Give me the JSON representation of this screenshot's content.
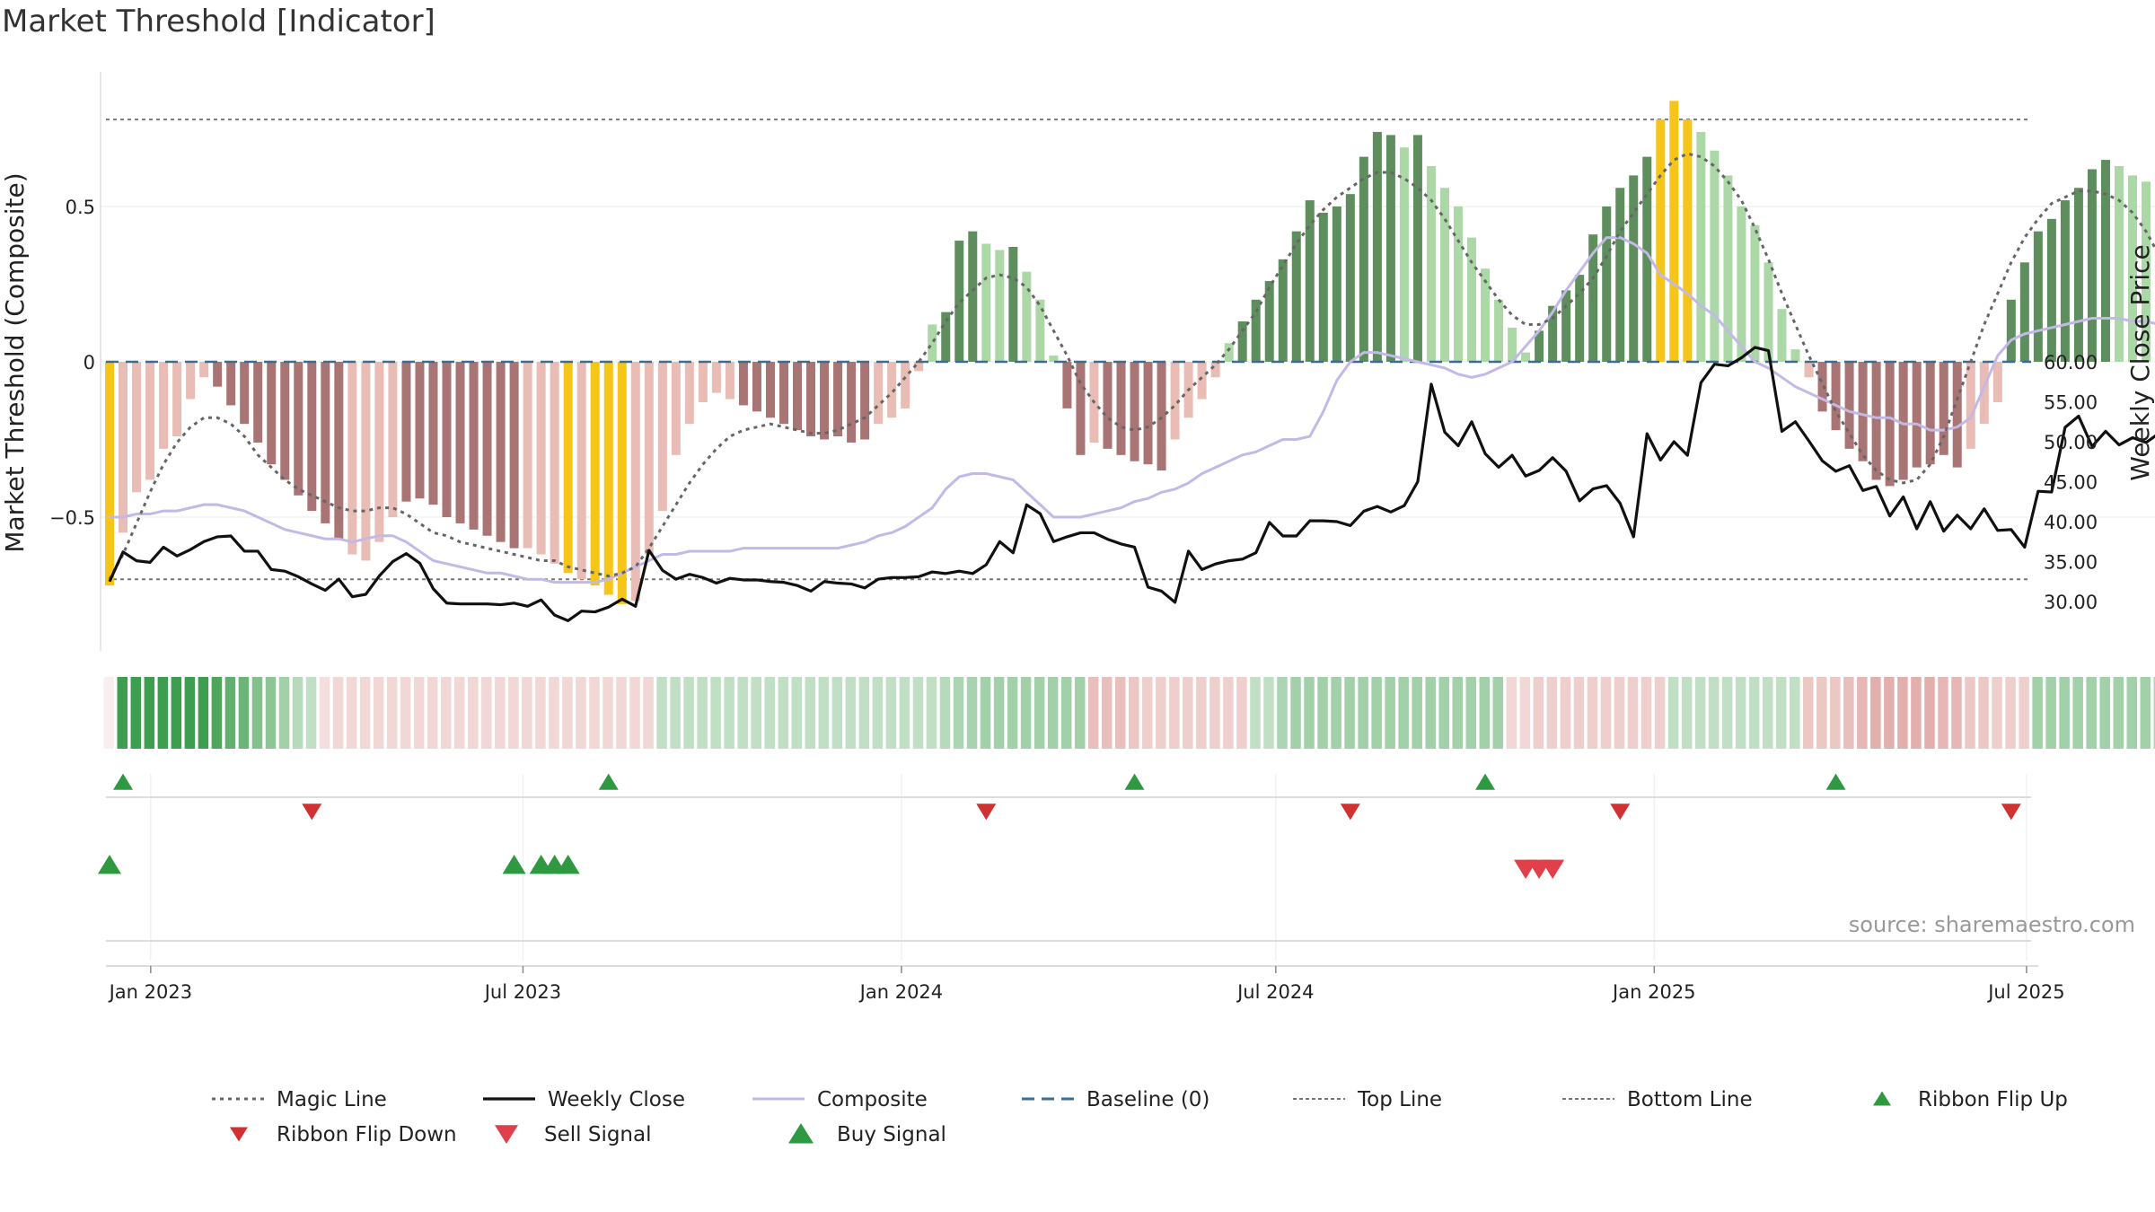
{
  "title": "Market Threshold [Indicator]",
  "source": "source: sharemaestro.com",
  "chart_data": {
    "type": "bar",
    "left_axis": {
      "label": "Market Threshold (Composite)",
      "ticks": [
        0.5,
        0,
        -0.5
      ],
      "tick_labels": [
        "0.5",
        "0",
        "−0.5"
      ],
      "ylim": [
        -0.95,
        0.95
      ]
    },
    "right_axis": {
      "label": "Weekly Close Price",
      "ticks": [
        30,
        35,
        40,
        45,
        50,
        55,
        60
      ],
      "tick_labels": [
        "30.00",
        "35.00",
        "40.00",
        "45.00",
        "50.00",
        "55.00",
        "60.00"
      ],
      "ylim": [
        26.8,
        63.4
      ]
    },
    "x_axis": {
      "start": "2022-12-12",
      "end": "2025-10-13",
      "ticks": [
        "2023-01-01",
        "2023-07-01",
        "2024-01-01",
        "2024-07-01",
        "2025-01-01",
        "2025-07-01"
      ],
      "tick_labels": [
        "Jan 2023",
        "Jul 2023",
        "Jan 2024",
        "Jul 2024",
        "Jan 2025",
        "Jul 2025"
      ]
    },
    "top_line": 0.78,
    "bottom_line": -0.7,
    "colors": {
      "extreme": "#f5c518",
      "up_strong": "#5e8e5e",
      "up_weak": "#acd8a8",
      "down_strong": "#a87474",
      "down_weak": "#e9bdb5",
      "close": "#111111",
      "composite": "#c4b8e6",
      "magic": "#666666",
      "baseline": "#3b6c94",
      "signal_up": "#2e9940",
      "signal_down": "#d03232",
      "sell": "#e0404a"
    },
    "series": [
      {
        "name": "Magic Line",
        "style": "dotted"
      },
      {
        "name": "Weekly Close",
        "style": "solid"
      },
      {
        "name": "Composite",
        "style": "solid"
      },
      {
        "name": "Baseline (0)",
        "style": "dashed"
      },
      {
        "name": "Top Line",
        "style": "dotted"
      },
      {
        "name": "Bottom Line",
        "style": "dotted"
      },
      {
        "name": "Ribbon Flip Up",
        "style": "marker"
      },
      {
        "name": "Ribbon Flip Down",
        "style": "marker"
      },
      {
        "name": "Sell Signal",
        "style": "marker"
      },
      {
        "name": "Buy Signal",
        "style": "marker"
      }
    ],
    "bar_values": [
      -0.72,
      -0.55,
      -0.42,
      -0.38,
      -0.28,
      -0.24,
      -0.12,
      -0.05,
      -0.08,
      -0.14,
      -0.2,
      -0.26,
      -0.33,
      -0.38,
      -0.43,
      -0.48,
      -0.52,
      -0.57,
      -0.62,
      -0.64,
      -0.58,
      -0.5,
      -0.45,
      -0.44,
      -0.46,
      -0.5,
      -0.52,
      -0.54,
      -0.56,
      -0.58,
      -0.6,
      -0.6,
      -0.62,
      -0.65,
      -0.68,
      -0.7,
      -0.72,
      -0.75,
      -0.78,
      -0.77,
      -0.62,
      -0.48,
      -0.3,
      -0.2,
      -0.13,
      -0.1,
      -0.12,
      -0.14,
      -0.16,
      -0.18,
      -0.2,
      -0.22,
      -0.24,
      -0.25,
      -0.24,
      -0.26,
      -0.25,
      -0.2,
      -0.18,
      -0.15,
      -0.03,
      0.12,
      0.16,
      0.39,
      0.42,
      0.38,
      0.36,
      0.37,
      0.29,
      0.2,
      0.02,
      -0.15,
      -0.3,
      -0.26,
      -0.28,
      -0.3,
      -0.32,
      -0.33,
      -0.35,
      -0.25,
      -0.18,
      -0.12,
      -0.05,
      0.06,
      0.13,
      0.2,
      0.26,
      0.33,
      0.42,
      0.52,
      0.48,
      0.5,
      0.54,
      0.66,
      0.74,
      0.73,
      0.69,
      0.73,
      0.63,
      0.56,
      0.5,
      0.4,
      0.3,
      0.2,
      0.11,
      0.03,
      0.1,
      0.18,
      0.23,
      0.28,
      0.41,
      0.5,
      0.56,
      0.6,
      0.66,
      0.78,
      0.84,
      0.78,
      0.74,
      0.68,
      0.6,
      0.5,
      0.44,
      0.32,
      0.17,
      0.04,
      -0.05,
      -0.16,
      -0.22,
      -0.28,
      -0.32,
      -0.38,
      -0.4,
      -0.38,
      -0.34,
      -0.33,
      -0.3,
      -0.34,
      -0.28,
      -0.2,
      -0.13,
      0.2,
      0.32,
      0.42,
      0.46,
      0.52,
      0.56,
      0.62,
      0.65,
      0.63,
      0.6,
      0.58,
      0.56,
      0.55,
      0.5,
      0.4,
      0.25,
      0.15,
      0.17
    ],
    "bar_colors": [
      "extreme",
      "down_weak",
      "down_weak",
      "down_weak",
      "down_weak",
      "down_weak",
      "down_weak",
      "down_weak",
      "down_strong",
      "down_strong",
      "down_strong",
      "down_strong",
      "down_strong",
      "down_strong",
      "down_strong",
      "down_strong",
      "down_strong",
      "down_strong",
      "down_weak",
      "down_weak",
      "down_weak",
      "down_weak",
      "down_strong",
      "down_strong",
      "down_strong",
      "down_strong",
      "down_strong",
      "down_strong",
      "down_strong",
      "down_strong",
      "down_strong",
      "down_weak",
      "down_weak",
      "down_weak",
      "extreme",
      "down_weak",
      "extreme",
      "extreme",
      "extreme",
      "down_weak",
      "down_weak",
      "down_weak",
      "down_weak",
      "down_weak",
      "down_weak",
      "down_weak",
      "down_weak",
      "down_strong",
      "down_strong",
      "down_strong",
      "down_strong",
      "down_strong",
      "down_strong",
      "down_strong",
      "down_strong",
      "down_strong",
      "down_strong",
      "down_weak",
      "down_weak",
      "down_weak",
      "down_weak",
      "up_weak",
      "up_strong",
      "up_strong",
      "up_strong",
      "up_weak",
      "up_weak",
      "up_strong",
      "up_weak",
      "up_weak",
      "up_weak",
      "down_strong",
      "down_strong",
      "down_weak",
      "down_strong",
      "down_strong",
      "down_strong",
      "down_strong",
      "down_strong",
      "down_weak",
      "down_weak",
      "down_weak",
      "down_weak",
      "up_weak",
      "up_strong",
      "up_strong",
      "up_strong",
      "up_strong",
      "up_strong",
      "up_strong",
      "up_strong",
      "up_strong",
      "up_strong",
      "up_strong",
      "up_strong",
      "up_strong",
      "up_weak",
      "up_strong",
      "up_weak",
      "up_weak",
      "up_weak",
      "up_weak",
      "up_weak",
      "up_weak",
      "up_weak",
      "up_weak",
      "up_strong",
      "up_strong",
      "up_strong",
      "up_strong",
      "up_strong",
      "up_strong",
      "up_strong",
      "up_strong",
      "up_strong",
      "extreme",
      "extreme",
      "extreme",
      "up_weak",
      "up_weak",
      "up_weak",
      "up_weak",
      "up_weak",
      "up_weak",
      "up_weak",
      "up_weak",
      "down_weak",
      "down_strong",
      "down_strong",
      "down_strong",
      "down_strong",
      "down_strong",
      "down_strong",
      "down_strong",
      "down_strong",
      "down_strong",
      "down_strong",
      "down_strong",
      "down_weak",
      "down_weak",
      "down_weak",
      "up_strong",
      "up_strong",
      "up_strong",
      "up_strong",
      "up_strong",
      "up_strong",
      "up_strong",
      "up_strong",
      "up_weak",
      "up_weak",
      "up_weak",
      "up_weak",
      "up_weak",
      "up_weak",
      "up_weak",
      "up_weak",
      "up_weak",
      "up_strong"
    ],
    "weekly_close": [
      32.5,
      36.2,
      35.1,
      34.9,
      36.8,
      35.7,
      36.5,
      37.5,
      38.1,
      38.2,
      36.3,
      36.3,
      34.0,
      33.8,
      33.1,
      32.2,
      31.4,
      32.8,
      30.6,
      30.9,
      33.2,
      35.0,
      36.0,
      34.8,
      31.6,
      29.8,
      29.7,
      29.7,
      29.7,
      29.6,
      29.8,
      29.4,
      30.2,
      28.3,
      27.6,
      28.8,
      28.7,
      29.3,
      30.3,
      29.4,
      36.4,
      33.9,
      32.8,
      33.4,
      33.0,
      32.3,
      32.9,
      32.7,
      32.7,
      32.5,
      32.4,
      32.0,
      31.3,
      32.5,
      32.3,
      32.2,
      31.7,
      32.8,
      33.0,
      33.0,
      33.1,
      33.7,
      33.5,
      33.8,
      33.5,
      34.6,
      37.5,
      36.1,
      42.1,
      41.0,
      37.5,
      38.1,
      38.6,
      38.6,
      37.8,
      37.2,
      36.8,
      31.8,
      31.3,
      29.9,
      36.3,
      34.0,
      34.7,
      35.1,
      35.3,
      36.1,
      39.9,
      38.2,
      38.2,
      40.1,
      40.1,
      40.0,
      39.5,
      41.3,
      41.9,
      41.2,
      42.0,
      45.0,
      57.2,
      51.2,
      49.5,
      52.5,
      48.5,
      46.8,
      48.3,
      45.7,
      46.4,
      48.0,
      46.3,
      42.6,
      44.1,
      44.5,
      42.3,
      38.1,
      51.0,
      47.7,
      50.0,
      48.3,
      57.4,
      59.7,
      59.5,
      60.5,
      61.8,
      61.4,
      51.3,
      52.5,
      50.1,
      47.6,
      46.3,
      47.0,
      43.9,
      44.4,
      40.7,
      43.1,
      39.1,
      42.5,
      38.8,
      40.8,
      39.1,
      41.6,
      38.9,
      39.0,
      36.8,
      43.8,
      43.7,
      51.8,
      53.2,
      49.4,
      51.3,
      49.6,
      50.5,
      49.9,
      51.1,
      49.9,
      49.3,
      48.4,
      48.0,
      47.6,
      48.8,
      43.9,
      44.7,
      45.0,
      48.2
    ],
    "magic_line": [
      -0.7,
      -0.62,
      -0.52,
      -0.42,
      -0.33,
      -0.26,
      -0.21,
      -0.18,
      -0.18,
      -0.2,
      -0.24,
      -0.3,
      -0.34,
      -0.38,
      -0.41,
      -0.43,
      -0.45,
      -0.47,
      -0.48,
      -0.48,
      -0.47,
      -0.47,
      -0.49,
      -0.52,
      -0.55,
      -0.56,
      -0.58,
      -0.59,
      -0.6,
      -0.61,
      -0.62,
      -0.63,
      -0.64,
      -0.64,
      -0.66,
      -0.67,
      -0.68,
      -0.69,
      -0.68,
      -0.66,
      -0.6,
      -0.53,
      -0.46,
      -0.39,
      -0.33,
      -0.28,
      -0.24,
      -0.22,
      -0.21,
      -0.2,
      -0.21,
      -0.22,
      -0.23,
      -0.23,
      -0.22,
      -0.2,
      -0.18,
      -0.14,
      -0.1,
      -0.05,
      0.0,
      0.06,
      0.13,
      0.19,
      0.23,
      0.27,
      0.28,
      0.27,
      0.24,
      0.18,
      0.1,
      0.02,
      -0.07,
      -0.13,
      -0.18,
      -0.21,
      -0.22,
      -0.21,
      -0.18,
      -0.14,
      -0.09,
      -0.05,
      -0.01,
      0.04,
      0.1,
      0.16,
      0.24,
      0.31,
      0.38,
      0.44,
      0.49,
      0.53,
      0.56,
      0.59,
      0.61,
      0.61,
      0.59,
      0.56,
      0.52,
      0.46,
      0.39,
      0.32,
      0.26,
      0.2,
      0.15,
      0.12,
      0.12,
      0.14,
      0.18,
      0.22,
      0.27,
      0.34,
      0.42,
      0.48,
      0.54,
      0.6,
      0.65,
      0.67,
      0.66,
      0.63,
      0.58,
      0.52,
      0.43,
      0.33,
      0.22,
      0.12,
      0.02,
      -0.07,
      -0.16,
      -0.23,
      -0.3,
      -0.35,
      -0.38,
      -0.39,
      -0.38,
      -0.33,
      -0.24,
      -0.12,
      0.0,
      0.12,
      0.22,
      0.32,
      0.4,
      0.46,
      0.51,
      0.53,
      0.55,
      0.55,
      0.54,
      0.52,
      0.48,
      0.42,
      0.34,
      0.31
    ],
    "composite": [
      -0.5,
      -0.5,
      -0.49,
      -0.49,
      -0.48,
      -0.48,
      -0.47,
      -0.46,
      -0.46,
      -0.47,
      -0.48,
      -0.5,
      -0.52,
      -0.54,
      -0.55,
      -0.56,
      -0.57,
      -0.57,
      -0.58,
      -0.57,
      -0.56,
      -0.56,
      -0.58,
      -0.61,
      -0.64,
      -0.65,
      -0.66,
      -0.67,
      -0.68,
      -0.68,
      -0.69,
      -0.7,
      -0.7,
      -0.71,
      -0.71,
      -0.71,
      -0.71,
      -0.7,
      -0.68,
      -0.66,
      -0.64,
      -0.62,
      -0.62,
      -0.61,
      -0.61,
      -0.61,
      -0.61,
      -0.6,
      -0.6,
      -0.6,
      -0.6,
      -0.6,
      -0.6,
      -0.6,
      -0.6,
      -0.59,
      -0.58,
      -0.56,
      -0.55,
      -0.53,
      -0.5,
      -0.47,
      -0.41,
      -0.37,
      -0.36,
      -0.36,
      -0.37,
      -0.38,
      -0.42,
      -0.46,
      -0.5,
      -0.5,
      -0.5,
      -0.49,
      -0.48,
      -0.47,
      -0.45,
      -0.44,
      -0.42,
      -0.41,
      -0.39,
      -0.36,
      -0.34,
      -0.32,
      -0.3,
      -0.29,
      -0.27,
      -0.25,
      -0.25,
      -0.24,
      -0.16,
      -0.06,
      0.0,
      0.03,
      0.03,
      0.02,
      0.01,
      0.0,
      -0.01,
      -0.02,
      -0.04,
      -0.05,
      -0.04,
      -0.02,
      0.0,
      0.05,
      0.1,
      0.16,
      0.23,
      0.29,
      0.35,
      0.4,
      0.4,
      0.38,
      0.35,
      0.28,
      0.25,
      0.22,
      0.18,
      0.15,
      0.1,
      0.05,
      0.0,
      -0.02,
      -0.05,
      -0.08,
      -0.1,
      -0.12,
      -0.14,
      -0.16,
      -0.17,
      -0.18,
      -0.18,
      -0.2,
      -0.2,
      -0.22,
      -0.22,
      -0.21,
      -0.18,
      -0.08,
      0.02,
      0.07,
      0.09,
      0.1,
      0.11,
      0.12,
      0.13,
      0.14,
      0.14,
      0.14,
      0.13,
      0.13,
      0.12,
      0.1,
      0.08,
      0.08
    ],
    "ribbon_levels": [
      -0.1,
      0.92,
      0.92,
      0.92,
      0.92,
      0.92,
      0.92,
      0.92,
      0.85,
      0.75,
      0.7,
      0.6,
      0.55,
      0.45,
      0.35,
      0.3,
      -0.2,
      -0.25,
      -0.25,
      -0.25,
      -0.25,
      -0.25,
      -0.25,
      -0.25,
      -0.25,
      -0.25,
      -0.25,
      -0.25,
      -0.25,
      -0.25,
      -0.25,
      -0.25,
      -0.25,
      -0.25,
      -0.25,
      -0.25,
      -0.25,
      -0.25,
      -0.25,
      -0.25,
      -0.25,
      0.3,
      0.3,
      0.3,
      0.3,
      0.3,
      0.3,
      0.3,
      0.3,
      0.3,
      0.3,
      0.3,
      0.3,
      0.3,
      0.3,
      0.3,
      0.3,
      0.3,
      0.3,
      0.3,
      0.3,
      0.3,
      0.35,
      0.4,
      0.42,
      0.45,
      0.45,
      0.45,
      0.45,
      0.45,
      0.45,
      0.45,
      0.45,
      -0.4,
      -0.4,
      -0.4,
      -0.35,
      -0.3,
      -0.3,
      -0.3,
      -0.3,
      -0.3,
      -0.3,
      -0.3,
      -0.3,
      0.3,
      0.3,
      0.4,
      0.45,
      0.45,
      0.45,
      0.45,
      0.45,
      0.45,
      0.45,
      0.45,
      0.45,
      0.45,
      0.45,
      0.45,
      0.45,
      0.45,
      0.45,
      0.45,
      -0.25,
      -0.25,
      -0.3,
      -0.3,
      -0.3,
      -0.3,
      -0.3,
      -0.3,
      -0.3,
      -0.3,
      -0.3,
      -0.3,
      0.3,
      0.3,
      0.3,
      0.3,
      0.3,
      0.3,
      0.3,
      0.3,
      0.3,
      0.3,
      -0.35,
      -0.35,
      -0.35,
      -0.4,
      -0.45,
      -0.5,
      -0.5,
      -0.5,
      -0.5,
      -0.5,
      -0.45,
      -0.45,
      -0.35,
      -0.35,
      -0.3,
      -0.3,
      -0.3,
      0.45,
      0.45,
      0.45,
      0.45,
      0.45,
      0.45,
      0.45,
      0.45,
      0.45,
      0.4,
      0.4,
      0.35,
      0.35,
      0.3,
      -0.25,
      -0.25
    ],
    "ribbon_flip_up": [
      1,
      37,
      76,
      102,
      128
    ],
    "ribbon_flip_down": [
      15,
      65,
      92,
      112,
      141
    ],
    "sell_signal": [
      105,
      106,
      107
    ],
    "buy_signal": [
      0,
      30,
      32,
      33,
      34
    ]
  }
}
